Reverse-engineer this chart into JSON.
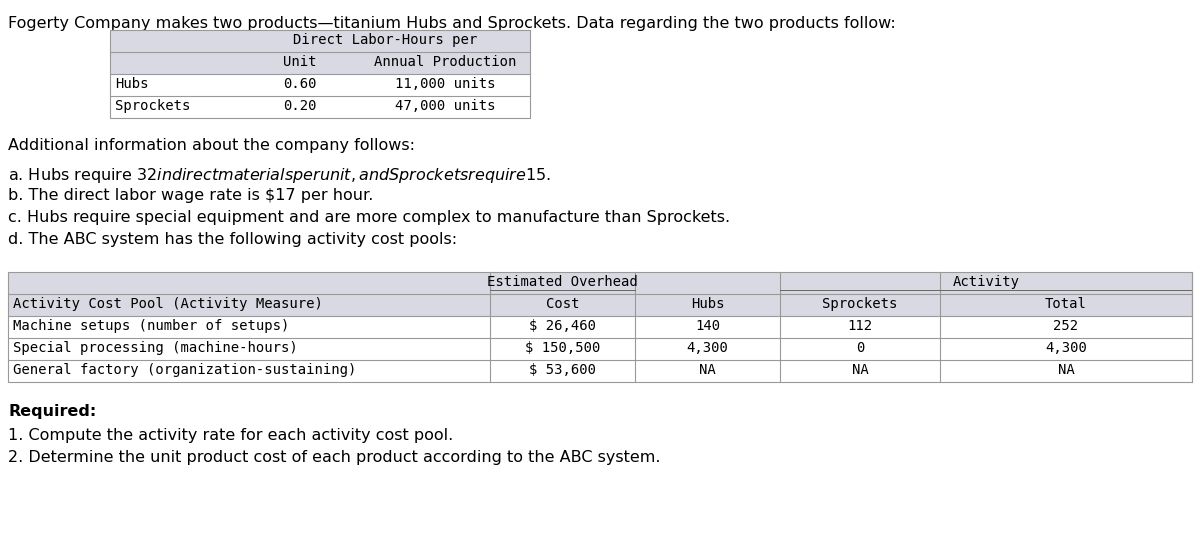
{
  "title_text": "Fogerty Company makes two products—titanium Hubs and Sprockets. Data regarding the two products follow:",
  "top_table": {
    "header_bg": "#d9d9e3",
    "table_bg": "#ffffff",
    "table_border": "#aaaaaa",
    "row1_header": "Direct Labor-Hours per",
    "row2_col1": "Unit",
    "row2_col2": "Annual Production",
    "data_rows": [
      [
        "Hubs",
        "0.60",
        "11,000 units"
      ],
      [
        "Sprockets",
        "0.20",
        "47,000 units"
      ]
    ]
  },
  "additional_info_header": "Additional information about the company follows:",
  "additional_info": [
    "a. Hubs require $32 in direct materials per unit, and Sprockets require $15.",
    "b. The direct labor wage rate is $17 per hour.",
    "c. Hubs require special equipment and are more complex to manufacture than Sprockets.",
    "d. The ABC system has the following activity cost pools:"
  ],
  "bottom_table": {
    "header_bg": "#d9d9e3",
    "table_bg": "#ffffff",
    "table_border": "#aaaaaa",
    "span_row": [
      "Estimated Overhead",
      "Activity"
    ],
    "sub_header": [
      "Activity Cost Pool (Activity Measure)",
      "Cost",
      "Hubs",
      "Sprockets",
      "Total"
    ],
    "rows": [
      [
        "Machine setups (number of setups)",
        "$ 26,460",
        "140",
        "112",
        "252"
      ],
      [
        "Special processing (machine-hours)",
        "$ 150,500",
        "4,300",
        "0",
        "4,300"
      ],
      [
        "General factory (organization-sustaining)",
        "$ 53,600",
        "NA",
        "NA",
        "NA"
      ]
    ]
  },
  "required_header": "Required:",
  "required_items": [
    "1. Compute the activity rate for each activity cost pool.",
    "2. Determine the unit product cost of each product according to the ABC system."
  ],
  "font_size_title": 11.5,
  "font_size_body": 11.5,
  "font_size_table_header": 10,
  "font_size_table_data": 10,
  "bg_color": "#ffffff"
}
